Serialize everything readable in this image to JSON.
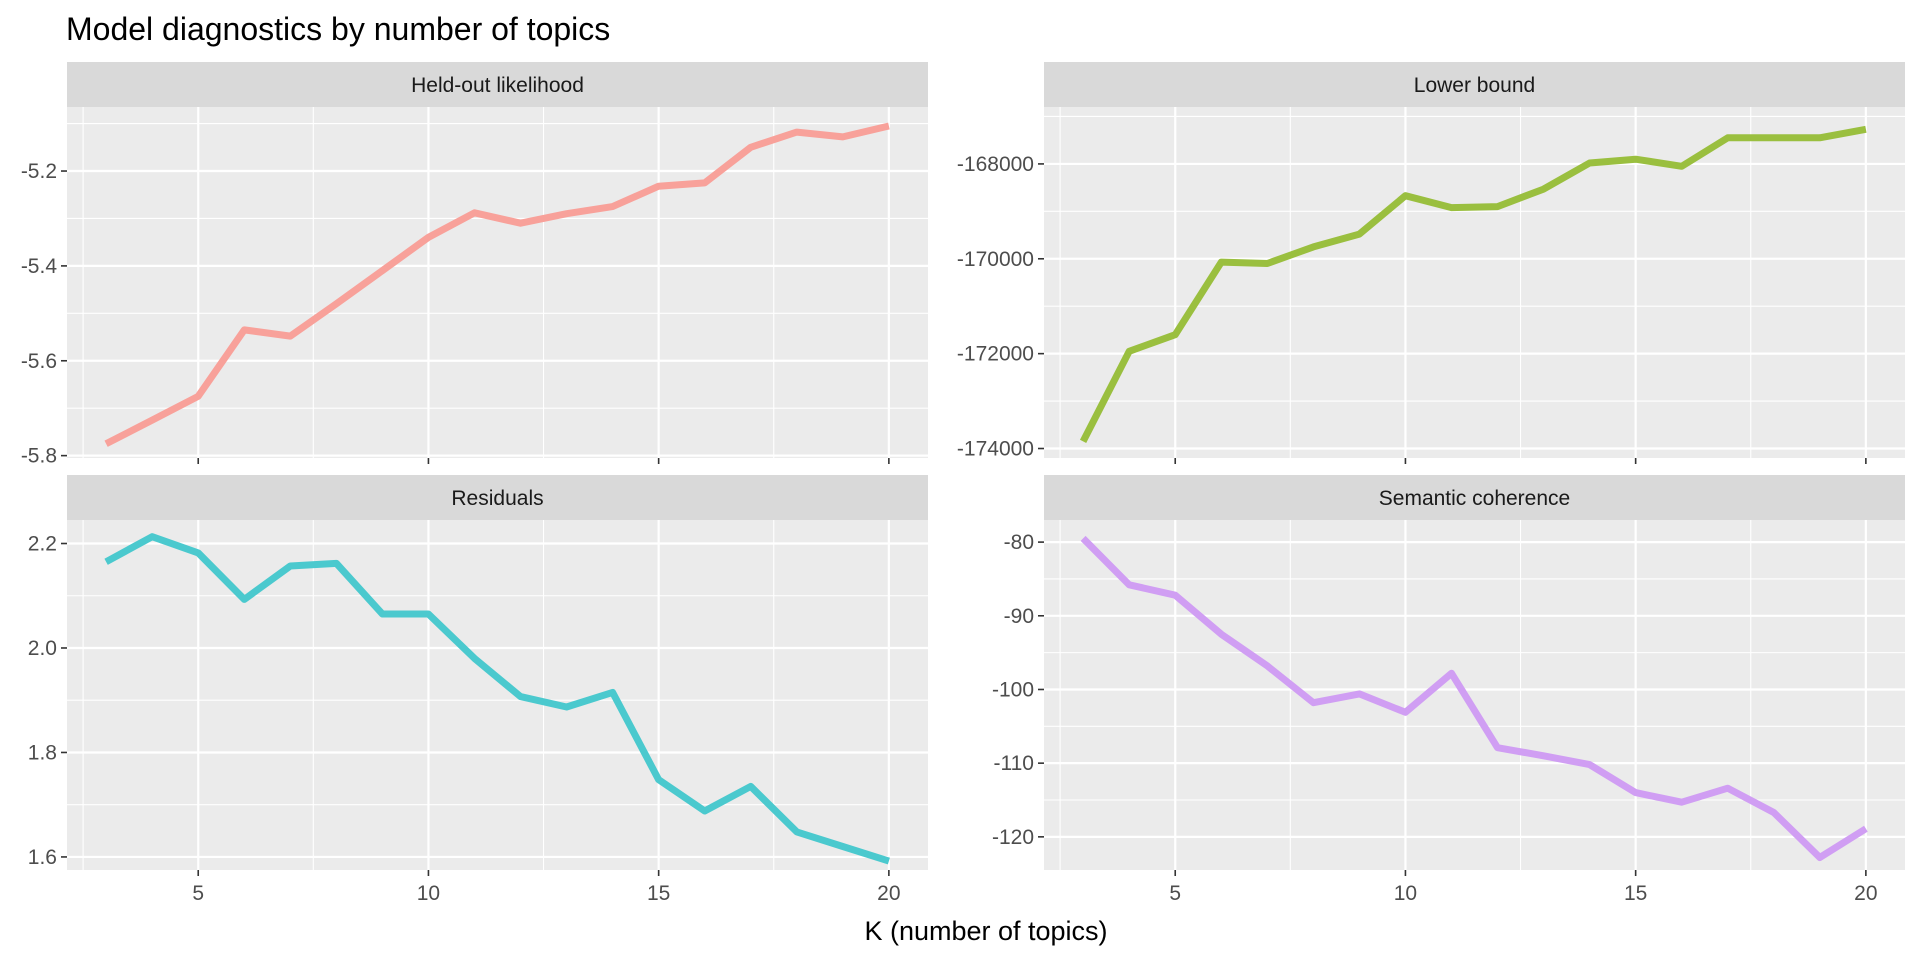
{
  "chart_data": {
    "type": "line",
    "title": "Model diagnostics by number of topics",
    "xlabel": "K (number of topics)",
    "ylabel": "",
    "x": [
      3,
      4,
      5,
      6,
      7,
      8,
      9,
      10,
      11,
      12,
      13,
      14,
      15,
      16,
      17,
      18,
      19,
      20
    ],
    "xlim": [
      2.15,
      20.85
    ],
    "x_breaks": [
      5,
      10,
      15,
      20
    ],
    "x_tick_labels": [
      "5",
      "10",
      "15",
      "20"
    ],
    "grid": true,
    "legend": "none",
    "facets": [
      {
        "name": "Held-out likelihood",
        "color": "#F8A19A",
        "ylim": [
          -5.805,
          -5.065
        ],
        "y_breaks": [
          -5.8,
          -5.6,
          -5.4,
          -5.2
        ],
        "y_tick_labels": [
          "-5.8",
          "-5.6",
          "-5.4",
          "-5.2"
        ],
        "values": [
          -5.775,
          -5.725,
          -5.675,
          -5.535,
          -5.548,
          -5.48,
          -5.41,
          -5.34,
          -5.288,
          -5.31,
          -5.29,
          -5.275,
          -5.232,
          -5.225,
          -5.15,
          -5.118,
          -5.128,
          -5.105
        ]
      },
      {
        "name": "Lower bound",
        "color": "#9ABF3F",
        "ylim": [
          -174200,
          -166800
        ],
        "y_breaks": [
          -174000,
          -172000,
          -170000,
          -168000
        ],
        "y_tick_labels": [
          "-174000",
          "-172000",
          "-170000",
          "-168000"
        ],
        "values": [
          -173850,
          -171950,
          -171600,
          -170070,
          -170100,
          -169750,
          -169480,
          -168670,
          -168920,
          -168900,
          -168530,
          -167980,
          -167900,
          -168050,
          -167450,
          -167450,
          -167450,
          -167270
        ]
      },
      {
        "name": "Residuals",
        "color": "#4BC9CE",
        "ylim": [
          1.575,
          2.245
        ],
        "y_breaks": [
          1.6,
          1.8,
          2.0,
          2.2
        ],
        "y_tick_labels": [
          "1.6",
          "1.8",
          "2.0",
          "2.2"
        ],
        "values": [
          2.165,
          2.213,
          2.182,
          2.093,
          2.157,
          2.162,
          2.065,
          2.065,
          1.98,
          1.907,
          1.887,
          1.915,
          1.748,
          1.688,
          1.735,
          1.648,
          1.62,
          1.592
        ]
      },
      {
        "name": "Semantic coherence",
        "color": "#D09EF3",
        "ylim": [
          -124.5,
          -77
        ],
        "y_breaks": [
          -120,
          -110,
          -100,
          -90,
          -80
        ],
        "y_tick_labels": [
          "-120",
          "-110",
          "-100",
          "-90",
          "-80"
        ],
        "values": [
          -79.5,
          -85.8,
          -87.2,
          -92.5,
          -96.8,
          -101.8,
          -100.6,
          -103.1,
          -97.8,
          -107.9,
          -109,
          -110.2,
          -114,
          -115.3,
          -113.4,
          -116.7,
          -122.8,
          -118.9
        ]
      }
    ]
  }
}
